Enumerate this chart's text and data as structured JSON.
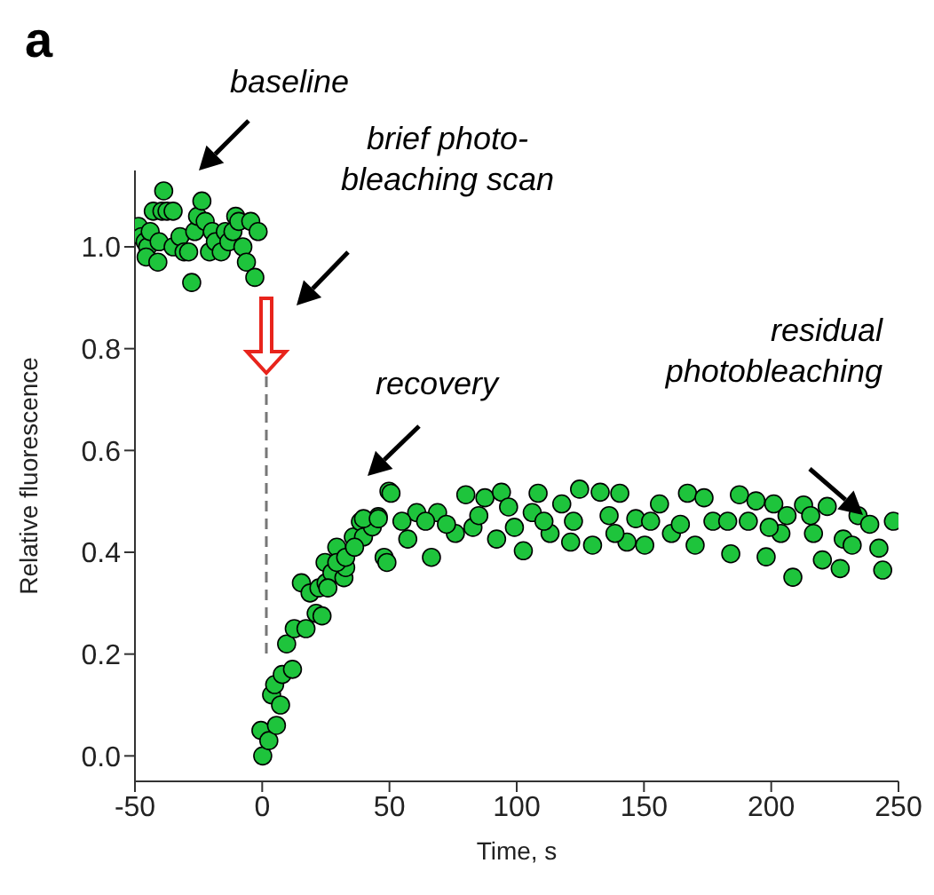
{
  "chart_data": {
    "type": "scatter",
    "title": "a",
    "xlabel": "Time, s",
    "ylabel": "Relative fluorescence",
    "annotations": [
      "baseline",
      "brief photo-\nbleaching scan",
      "recovery",
      "residual\nphotobleaching"
    ],
    "xlim": [
      -50,
      250
    ],
    "xticks": [
      -50,
      0,
      50,
      100,
      150,
      200,
      250
    ],
    "ylim": [
      -0.05,
      1.15
    ],
    "yticks": [
      {
        "value": 0,
        "label": "0.0"
      },
      0.2,
      0.4,
      0.6,
      0.8,
      {
        "value": 1,
        "label": "1.0"
      }
    ],
    "marker": "circle",
    "grid": false,
    "series": [
      {
        "color": "#1ec43c",
        "x": [
          -48.6,
          -47.5,
          -46,
          -45,
          -45.6,
          -44,
          -42.8,
          -41,
          -40.5,
          -39.4,
          -38.7,
          -37.4,
          -35,
          -35,
          -32.3,
          -30.7,
          -28.9,
          -27.7,
          -26.5,
          -25.4,
          -23.7,
          -22.4,
          -20.7,
          -19.6,
          -18.4,
          -16.1,
          -14.5,
          -13.1,
          -11.5,
          -10.4,
          -9.2,
          -7.6,
          -6.2,
          -4.5,
          -2.9,
          -1.6,
          0.2,
          -0.5,
          2.6,
          5.6,
          3.7,
          4.9,
          7.2,
          7.9,
          11.9,
          9.6,
          12.6,
          17.2,
          15.4,
          18.8,
          21.2,
          22.3,
          25.1,
          24.7,
          27.4,
          29.3,
          32.1,
          32.8,
          35.8,
          38.6,
          39.8,
          43.3,
          45.6,
          47.9,
          49.8,
          23.5,
          25.8,
          29.3,
          32.8,
          36.3,
          39.8,
          45.6,
          49,
          50.6,
          57.2,
          60.7,
          66.5,
          68.9,
          75.9,
          80,
          82.8,
          87.5,
          92.1,
          94,
          99.1,
          102.6,
          106.1,
          108.4,
          113.1,
          117.7,
          121.2,
          124.7,
          129.8,
          132.8,
          136.3,
          140.5,
          143.3,
          146.8,
          150.3,
          156.1,
          160.8,
          167.1,
          170.1,
          173.6,
          177.1,
          184.1,
          187.5,
          191,
          194,
          198,
          201,
          203.8,
          208.5,
          212.7,
          216.6,
          220.1,
          222,
          227.1,
          228.3,
          234.1,
          238.7,
          243.8,
          248,
          54.9,
          64.2,
          72.4,
          85.1,
          96.8,
          110.7,
          122.3,
          138.6,
          152.6,
          164.3,
          182.9,
          199.2,
          206.2,
          215.5,
          231.8,
          242.3
        ],
        "values": [
          1.04,
          1.02,
          1.01,
          1.0,
          0.98,
          1.03,
          1.07,
          0.97,
          1.01,
          1.07,
          1.11,
          1.07,
          1.07,
          1.0,
          1.02,
          0.99,
          0.99,
          0.93,
          1.03,
          1.06,
          1.09,
          1.05,
          0.99,
          1.03,
          1.01,
          0.99,
          1.03,
          1.01,
          1.03,
          1.06,
          1.05,
          1.0,
          0.97,
          1.05,
          0.94,
          1.03,
          0.0,
          0.05,
          0.03,
          0.06,
          0.12,
          0.14,
          0.1,
          0.16,
          0.17,
          0.22,
          0.25,
          0.25,
          0.34,
          0.32,
          0.28,
          0.33,
          0.34,
          0.38,
          0.36,
          0.41,
          0.35,
          0.37,
          0.43,
          0.46,
          0.43,
          0.45,
          0.47,
          0.39,
          0.52,
          0.275,
          0.33,
          0.38,
          0.39,
          0.41,
          0.466,
          0.466,
          0.38,
          0.516,
          0.426,
          0.478,
          0.39,
          0.478,
          0.437,
          0.513,
          0.449,
          0.507,
          0.426,
          0.518,
          0.449,
          0.403,
          0.478,
          0.516,
          0.437,
          0.495,
          0.42,
          0.524,
          0.414,
          0.518,
          0.472,
          0.516,
          0.42,
          0.466,
          0.414,
          0.495,
          0.437,
          0.516,
          0.414,
          0.507,
          0.461,
          0.397,
          0.513,
          0.461,
          0.501,
          0.391,
          0.495,
          0.437,
          0.351,
          0.493,
          0.437,
          0.385,
          0.49,
          0.368,
          0.426,
          0.472,
          0.455,
          0.365,
          0.461,
          0.461,
          0.461,
          0.455,
          0.472,
          0.489,
          0.461,
          0.461,
          0.437,
          0.461,
          0.455,
          0.461,
          0.449,
          0.472,
          0.472,
          0.414,
          0.408
        ]
      }
    ]
  }
}
